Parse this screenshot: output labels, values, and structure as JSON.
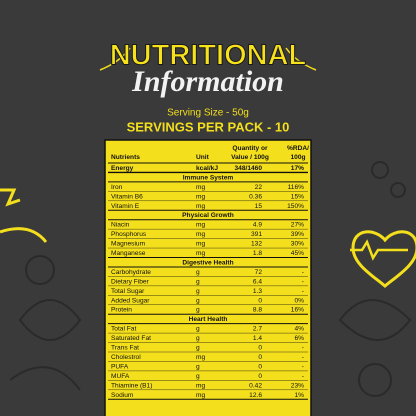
{
  "header": {
    "title": "NUTRITIONAL",
    "subtitle": "Information",
    "serving_size": "Serving Size - 50g",
    "servings": "SERVINGS PER PACK - 10"
  },
  "table": {
    "columns": [
      [
        "Nutrients"
      ],
      [
        "Unit"
      ],
      [
        "Quantity or",
        "Value / 100g"
      ],
      [
        "%RDA/",
        "100g"
      ]
    ],
    "energy": [
      "Energy",
      "kcal/kJ",
      "348/1460",
      "17%"
    ],
    "sections": [
      {
        "title": "Immune System",
        "rows": [
          [
            "Iron",
            "mg",
            "22",
            "116%"
          ],
          [
            "Vitamin B6",
            "mg",
            "0.36",
            "15%"
          ],
          [
            "Vitamin E",
            "mg",
            "15",
            "150%"
          ]
        ]
      },
      {
        "title": "Physical Growth",
        "rows": [
          [
            "Niacin",
            "mg",
            "4.9",
            "27%"
          ],
          [
            "Phosphorus",
            "mg",
            "391",
            "39%"
          ],
          [
            "Magnesium",
            "mg",
            "132",
            "30%"
          ],
          [
            "Manganese",
            "mg",
            "1.8",
            "45%"
          ]
        ]
      },
      {
        "title": "Digestive Health",
        "rows": [
          [
            "Carbohydrate",
            "g",
            "72",
            "-"
          ],
          [
            "Dietary Fiber",
            "g",
            "6.4",
            "-"
          ],
          [
            "Total Sugar",
            "g",
            "1.3",
            "-"
          ],
          [
            "Added Sugar",
            "g",
            "0",
            "0%"
          ],
          [
            "Protein",
            "g",
            "8.8",
            "16%"
          ]
        ]
      },
      {
        "title": "Heart Health",
        "rows": [
          [
            "Total Fat",
            "g",
            "2.7",
            "4%"
          ],
          [
            "Saturated Fat",
            "g",
            "1.4",
            "6%"
          ],
          [
            "Trans Fat",
            "g",
            "0",
            "-"
          ],
          [
            "Cholestrol",
            "mg",
            "0",
            "-"
          ],
          [
            "PUFA",
            "g",
            "0",
            "-"
          ],
          [
            "MUFA",
            "g",
            "0",
            "-"
          ],
          [
            "Thiamine (B1)",
            "mg",
            "0.42",
            "23%"
          ],
          [
            "Sodium",
            "mg",
            "12.6",
            "1%"
          ]
        ]
      }
    ]
  }
}
